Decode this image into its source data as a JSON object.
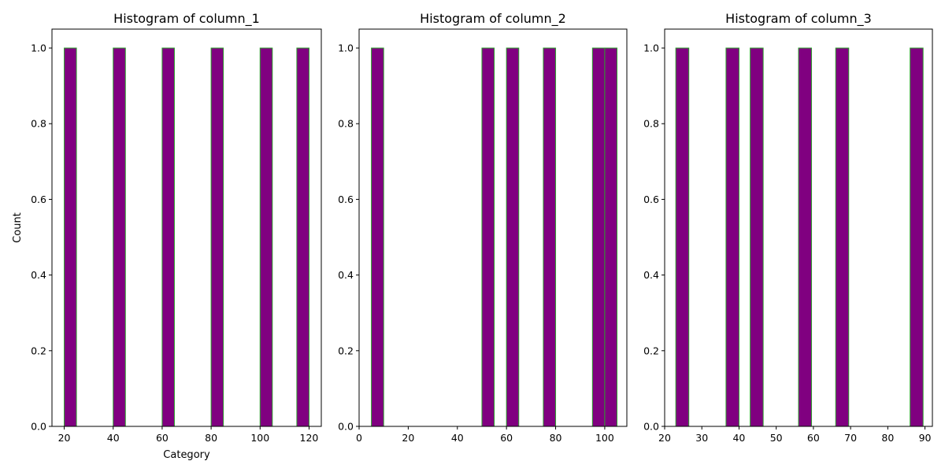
{
  "chart_data": [
    {
      "type": "bar",
      "title": "Histogram of column_1",
      "xlabel": "Category",
      "ylabel": "Count",
      "xlim": [
        15,
        125
      ],
      "ylim": [
        0,
        1.05
      ],
      "xticks": [
        20,
        40,
        60,
        80,
        100,
        120
      ],
      "yticks": [
        0.0,
        0.2,
        0.4,
        0.6,
        0.8,
        1.0
      ],
      "bins": [
        [
          20,
          25
        ],
        [
          40,
          45
        ],
        [
          60,
          65
        ],
        [
          80,
          85
        ],
        [
          100,
          105
        ],
        [
          115,
          120
        ]
      ],
      "values": [
        1,
        1,
        1,
        1,
        1,
        1
      ],
      "bar_color": "#800080",
      "edge_color": "#2ca02c"
    },
    {
      "type": "bar",
      "title": "Histogram of column_2",
      "xlabel": "",
      "ylabel": "",
      "xlim": [
        0,
        109
      ],
      "ylim": [
        0,
        1.05
      ],
      "xticks": [
        0,
        20,
        40,
        60,
        80,
        100
      ],
      "yticks": [
        0.0,
        0.2,
        0.4,
        0.6,
        0.8,
        1.0
      ],
      "bins": [
        [
          5,
          10
        ],
        [
          50,
          55
        ],
        [
          60,
          65
        ],
        [
          75,
          80
        ],
        [
          95,
          100
        ],
        [
          100,
          105
        ]
      ],
      "values": [
        1,
        1,
        1,
        1,
        1,
        1
      ],
      "bar_color": "#800080",
      "edge_color": "#2ca02c"
    },
    {
      "type": "bar",
      "title": "Histogram of column_3",
      "xlabel": "",
      "ylabel": "",
      "xlim": [
        20,
        92
      ],
      "ylim": [
        0,
        1.05
      ],
      "xticks": [
        20,
        30,
        40,
        50,
        60,
        70,
        80,
        90
      ],
      "yticks": [
        0.0,
        0.2,
        0.4,
        0.6,
        0.8,
        1.0
      ],
      "bins": [
        [
          23,
          26.5
        ],
        [
          36.5,
          40
        ],
        [
          43,
          46.5
        ],
        [
          56,
          59.5
        ],
        [
          66,
          69.5
        ],
        [
          86,
          89.5
        ]
      ],
      "values": [
        1,
        1,
        1,
        1,
        1,
        1
      ],
      "bar_color": "#800080",
      "edge_color": "#2ca02c"
    }
  ]
}
